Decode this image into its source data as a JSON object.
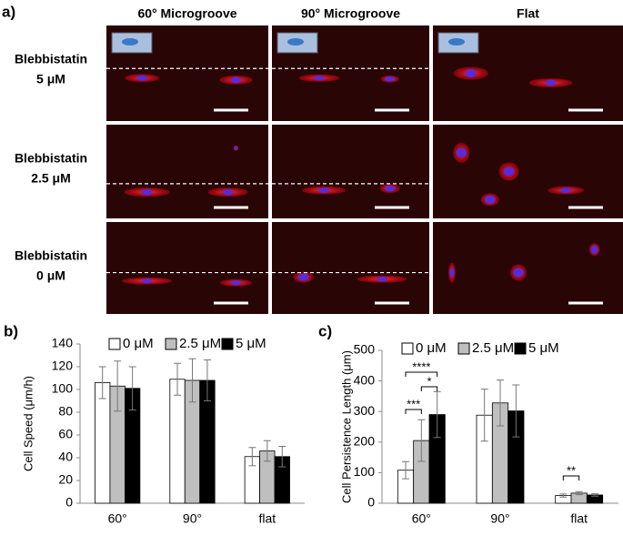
{
  "panel_a": {
    "label": "a)",
    "columns": [
      "60° Microgroove",
      "90° Microgroove",
      "Flat"
    ],
    "rows": [
      [
        "Blebbistatin",
        "5 μM"
      ],
      [
        "Blebbistatin",
        "2.5 μM"
      ],
      [
        "Blebbistatin",
        "0 μM"
      ]
    ]
  },
  "chart_data": [
    {
      "type": "bar",
      "panel_label": "b)",
      "y_label": "Cell Speed  (μm/h)",
      "categories": [
        "60°",
        "90°",
        "flat"
      ],
      "series": [
        {
          "name": "0 μM",
          "color": "#ffffff",
          "values": [
            106,
            109,
            41
          ],
          "error": [
            14,
            14,
            8
          ]
        },
        {
          "name": "2.5 μM",
          "color": "#bfbfbf",
          "values": [
            103,
            108,
            46
          ],
          "error": [
            22,
            19,
            9
          ]
        },
        {
          "name": "5 μM",
          "color": "#000000",
          "values": [
            101,
            108,
            41
          ],
          "error": [
            19,
            18,
            9
          ]
        }
      ],
      "ylim": [
        0,
        140
      ],
      "yticks": [
        0,
        20,
        40,
        60,
        80,
        100,
        120,
        140
      ],
      "grid": false
    },
    {
      "type": "bar",
      "panel_label": "c)",
      "y_label": "Cell Persistence Length  (μm)",
      "categories": [
        "60°",
        "90°",
        "flat"
      ],
      "series": [
        {
          "name": "0 μM",
          "color": "#ffffff",
          "values": [
            108,
            288,
            25
          ],
          "error": [
            28,
            85,
            5
          ]
        },
        {
          "name": "2.5 μM",
          "color": "#bfbfbf",
          "values": [
            205,
            328,
            33
          ],
          "error": [
            68,
            75,
            5
          ]
        },
        {
          "name": "5 μM",
          "color": "#000000",
          "values": [
            290,
            302,
            27
          ],
          "error": [
            75,
            85,
            4
          ]
        }
      ],
      "ylim": [
        0,
        500
      ],
      "yticks": [
        0,
        100,
        200,
        300,
        400,
        500
      ],
      "grid": false,
      "annotations": [
        "****",
        "***",
        "*",
        "**"
      ]
    }
  ]
}
